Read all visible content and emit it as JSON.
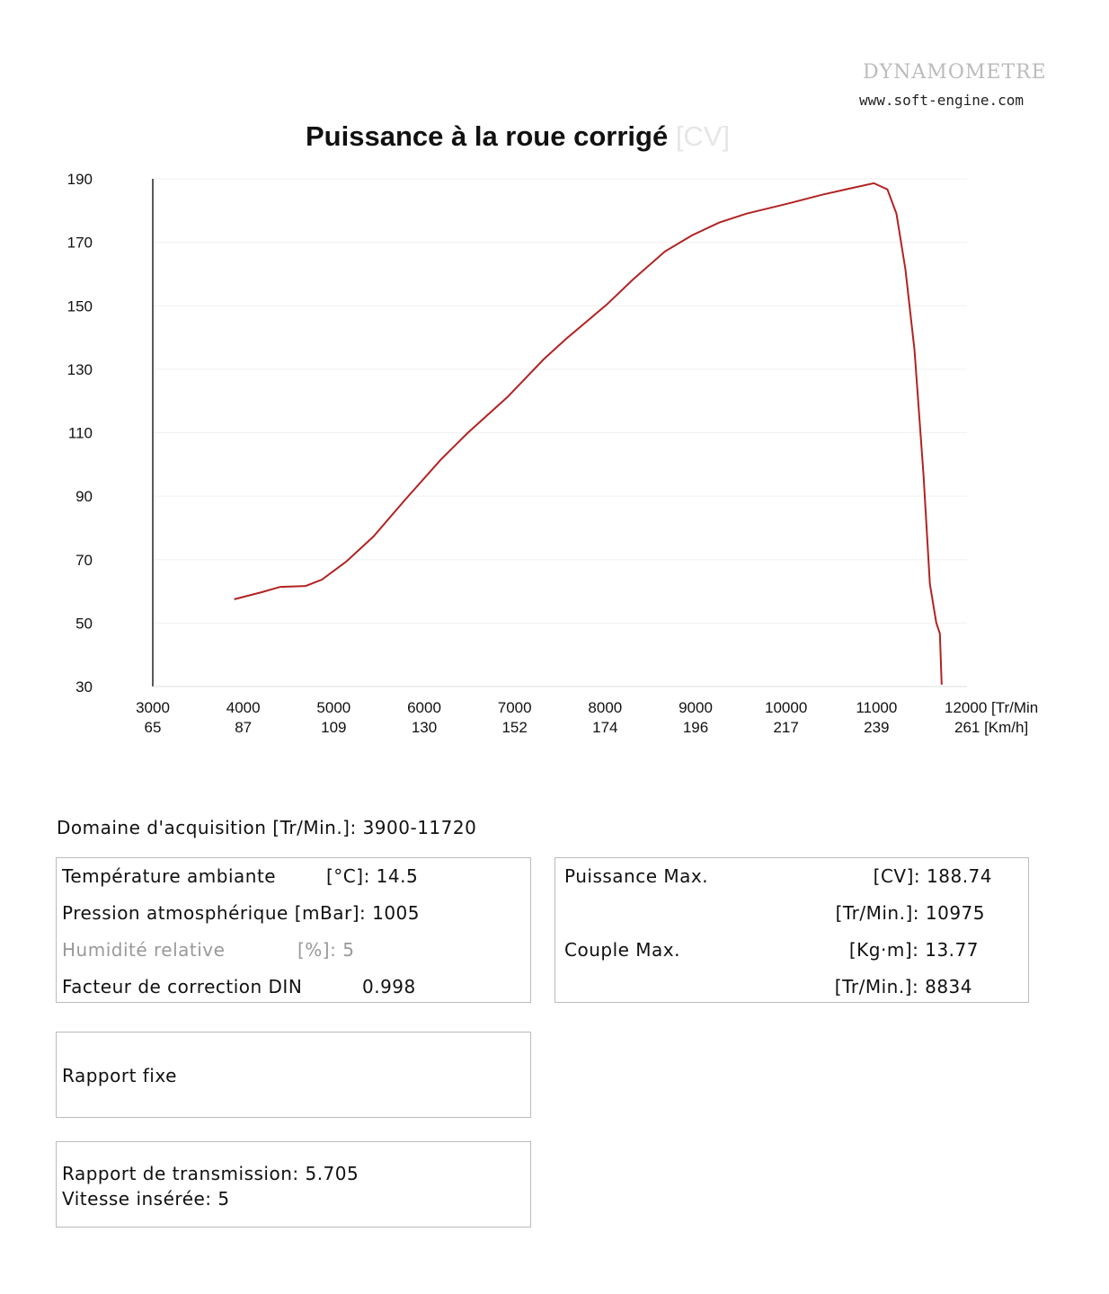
{
  "header": {
    "brand": "DYNAMOMETRE",
    "url": "www.soft-engine.com"
  },
  "chart_data": {
    "type": "line",
    "title": "Puissance à la roue corrigé",
    "ylabel_unit": "[CV]",
    "xlabel": "[Tr/Min",
    "x2label": "[Km/h]",
    "xlim": [
      3000,
      12000
    ],
    "ylim": [
      30,
      190
    ],
    "yticks": [
      190,
      170,
      150,
      130,
      110,
      90,
      70,
      50,
      30
    ],
    "xticks": [
      3000,
      4000,
      5000,
      6000,
      7000,
      8000,
      9000,
      10000,
      11000,
      12000
    ],
    "x2ticks": [
      65,
      87,
      109,
      130,
      152,
      174,
      196,
      217,
      239,
      261
    ],
    "grid": true,
    "color": "#b22222",
    "series": [
      {
        "x": [
          3900,
          4200,
          4410,
          4690,
          4870,
          5140,
          5440,
          5780,
          6180,
          6480,
          6920,
          7320,
          7570,
          8020,
          8310,
          8660,
          8960,
          9260,
          9560,
          10050,
          10400,
          10700,
          10970,
          11120,
          11220,
          11320,
          11420,
          11520,
          11590,
          11660,
          11700,
          11720
        ],
        "y": [
          57.5,
          59.7,
          61.4,
          61.7,
          63.7,
          69.4,
          77.3,
          88.6,
          101.4,
          109.9,
          121.2,
          133.1,
          139.6,
          150.4,
          158.3,
          167.1,
          172.2,
          176.2,
          179.0,
          182.4,
          185.0,
          186.9,
          188.6,
          186.7,
          179,
          161.4,
          136,
          96.3,
          62.3,
          50.1,
          46.7,
          30.6
        ]
      }
    ]
  },
  "acquisition": {
    "label": "Domaine d'acquisition [Tr/Min.]:",
    "value": "3900-11720"
  },
  "conditions": [
    {
      "label": "Température ambiante",
      "unit": "[°C]:",
      "value": "14.5"
    },
    {
      "label": "Pression atmosphérique",
      "unit": "[mBar]:",
      "value": "1005"
    },
    {
      "label": "Humidité relative",
      "unit": "[%]:",
      "value": "5"
    },
    {
      "label": "Facteur de correction DIN",
      "unit": "",
      "value": "0.998"
    }
  ],
  "max": {
    "power_label": "Puissance Max.",
    "power_unit": "[CV]:",
    "power_value": "188.74",
    "power_rpm_unit": "[Tr/Min.]:",
    "power_rpm": "10975",
    "torque_label": "Couple Max.",
    "torque_unit": "[Kg·m]:",
    "torque_value": "13.77",
    "torque_rpm_unit": "[Tr/Min.]:",
    "torque_rpm": "8834"
  },
  "ratio": {
    "label": "Rapport fixe"
  },
  "transmission": {
    "ratio": "Rapport de transmission: 5.705",
    "gear": "Vitesse insérée: 5"
  }
}
